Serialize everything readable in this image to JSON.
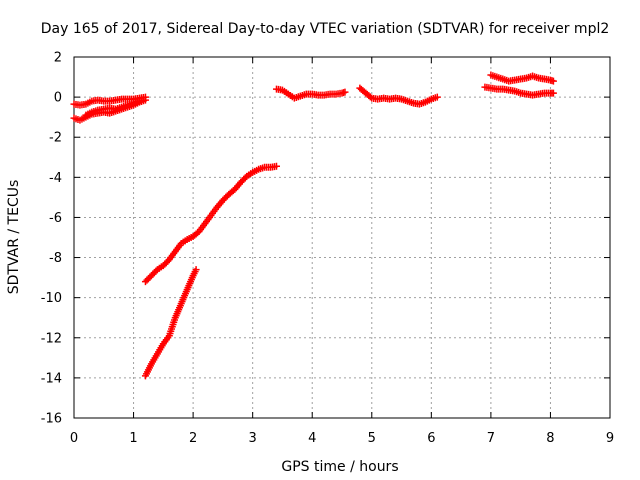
{
  "chart_data": {
    "type": "scatter",
    "title": "Day 165 of 2017, Sidereal Day-to-day VTEC variation (SDTVAR) for receiver mpl2",
    "xlabel": "GPS time / hours",
    "ylabel": "SDTVAR / TECUs",
    "xlim": [
      0,
      9
    ],
    "ylim": [
      -16,
      2
    ],
    "xticks": [
      "0",
      "1",
      "2",
      "3",
      "4",
      "5",
      "6",
      "7",
      "8",
      "9"
    ],
    "yticks": [
      "2",
      "0",
      "-2",
      "-4",
      "-6",
      "-8",
      "-10",
      "-12",
      "-14",
      "-16"
    ],
    "grid": true,
    "marker": "plus",
    "color": "#ff0000",
    "series": [
      {
        "x": [
          0.0,
          0.1,
          0.2,
          0.3,
          0.4,
          0.5,
          0.6,
          0.7,
          0.8,
          0.9,
          1.0,
          1.1,
          1.2
        ],
        "y": [
          -0.35,
          -0.4,
          -0.35,
          -0.2,
          -0.15,
          -0.2,
          -0.2,
          -0.15,
          -0.1,
          -0.1,
          -0.1,
          -0.05,
          0.0
        ]
      },
      {
        "x": [
          0.0,
          0.1,
          0.2,
          0.3,
          0.4,
          0.5,
          0.6,
          0.7,
          0.8,
          0.9,
          1.0,
          1.1,
          1.2
        ],
        "y": [
          -1.05,
          -1.15,
          -1.0,
          -0.85,
          -0.8,
          -0.75,
          -0.8,
          -0.7,
          -0.6,
          -0.5,
          -0.4,
          -0.25,
          -0.15
        ]
      },
      {
        "x": [
          0.2,
          0.3,
          0.4,
          0.5,
          0.6,
          0.7,
          0.8,
          0.9,
          1.0,
          1.1
        ],
        "y": [
          -0.9,
          -0.75,
          -0.65,
          -0.6,
          -0.55,
          -0.6,
          -0.5,
          -0.4,
          -0.3,
          -0.2
        ]
      },
      {
        "x": [
          1.2,
          1.3,
          1.4,
          1.5,
          1.6,
          1.7,
          1.8,
          1.9,
          2.0,
          2.1,
          2.2,
          2.3,
          2.4,
          2.5,
          2.6,
          2.7,
          2.8,
          2.9,
          3.0,
          3.1,
          3.2,
          3.3,
          3.4
        ],
        "y": [
          -9.2,
          -8.9,
          -8.6,
          -8.4,
          -8.1,
          -7.7,
          -7.3,
          -7.1,
          -6.95,
          -6.7,
          -6.3,
          -5.9,
          -5.5,
          -5.15,
          -4.85,
          -4.6,
          -4.25,
          -3.95,
          -3.75,
          -3.6,
          -3.5,
          -3.5,
          -3.45
        ]
      },
      {
        "x": [
          1.2,
          1.3,
          1.4,
          1.5,
          1.6,
          1.7,
          1.8,
          1.9,
          2.0,
          2.05
        ],
        "y": [
          -13.9,
          -13.3,
          -12.8,
          -12.3,
          -11.9,
          -11.0,
          -10.3,
          -9.6,
          -8.9,
          -8.6
        ]
      },
      {
        "x": [
          3.4,
          3.5,
          3.6,
          3.7,
          3.8,
          3.9,
          4.0,
          4.1,
          4.2,
          4.3,
          4.4,
          4.5,
          4.55
        ],
        "y": [
          0.4,
          0.35,
          0.15,
          -0.05,
          0.05,
          0.15,
          0.15,
          0.1,
          0.1,
          0.15,
          0.15,
          0.2,
          0.25
        ]
      },
      {
        "x": [
          4.8,
          4.9,
          5.0,
          5.1,
          5.2,
          5.3,
          5.4,
          5.5,
          5.6,
          5.7,
          5.8,
          5.9,
          6.0,
          6.1
        ],
        "y": [
          0.45,
          0.2,
          -0.05,
          -0.1,
          -0.05,
          -0.1,
          -0.05,
          -0.1,
          -0.2,
          -0.3,
          -0.35,
          -0.25,
          -0.1,
          0.0
        ]
      },
      {
        "x": [
          7.0,
          7.1,
          7.2,
          7.3,
          7.4,
          7.5,
          7.6,
          7.7,
          7.8,
          7.9,
          8.0,
          8.05
        ],
        "y": [
          1.1,
          1.0,
          0.9,
          0.8,
          0.85,
          0.9,
          0.95,
          1.05,
          0.95,
          0.9,
          0.85,
          0.8
        ]
      },
      {
        "x": [
          6.9,
          7.0,
          7.1,
          7.2,
          7.3,
          7.4,
          7.5,
          7.6,
          7.7,
          7.8,
          7.9,
          8.0,
          8.05
        ],
        "y": [
          0.5,
          0.45,
          0.4,
          0.4,
          0.35,
          0.3,
          0.2,
          0.15,
          0.1,
          0.15,
          0.2,
          0.2,
          0.2
        ]
      }
    ]
  }
}
